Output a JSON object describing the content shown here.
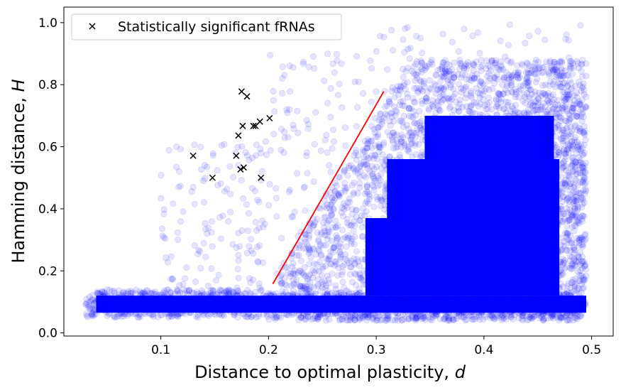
{
  "chart_data": {
    "type": "scatter",
    "title": "",
    "xlabel": "Distance to optimal plasticity, ",
    "xlabel_var": "d",
    "ylabel": "Hamming distance, ",
    "ylabel_var": "H",
    "xlim": [
      0.01,
      0.52
    ],
    "ylim": [
      -0.01,
      1.05
    ],
    "xticks": [
      "0.1",
      "0.2",
      "0.3",
      "0.4",
      "0.5"
    ],
    "xtick_values": [
      0.1,
      0.2,
      0.3,
      0.4,
      0.5
    ],
    "yticks": [
      "0.0",
      "0.2",
      "0.4",
      "0.6",
      "0.8",
      "1.0"
    ],
    "ytick_values": [
      0.0,
      0.2,
      0.4,
      0.6,
      0.8,
      1.0
    ],
    "grid": false,
    "legend_position": "upper-left",
    "colors": {
      "cloud": "#0000ff",
      "significant": "#000000",
      "trend": "#ff0000"
    },
    "series": [
      {
        "name": "Statistically significant fRNAs",
        "marker": "x",
        "points": [
          [
            0.13,
            0.571
          ],
          [
            0.148,
            0.5
          ],
          [
            0.17,
            0.571
          ],
          [
            0.172,
            0.636
          ],
          [
            0.174,
            0.527
          ],
          [
            0.175,
            0.778
          ],
          [
            0.176,
            0.667
          ],
          [
            0.177,
            0.533
          ],
          [
            0.18,
            0.762
          ],
          [
            0.186,
            0.667
          ],
          [
            0.188,
            0.667
          ],
          [
            0.192,
            0.681
          ],
          [
            0.193,
            0.5
          ],
          [
            0.201,
            0.692
          ]
        ]
      }
    ],
    "trend_line": {
      "x": [
        0.204,
        0.307
      ],
      "y": [
        0.158,
        0.778
      ]
    }
  }
}
